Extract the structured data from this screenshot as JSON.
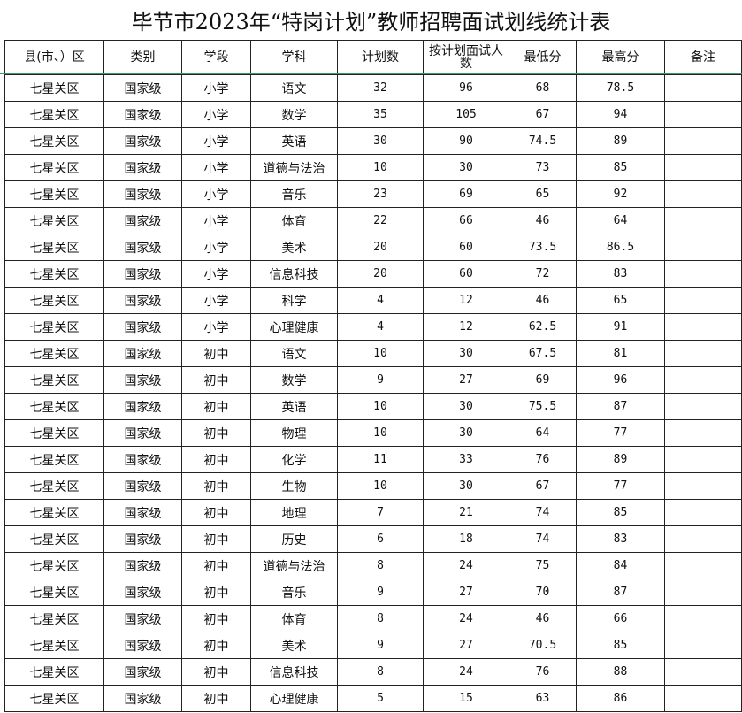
{
  "title": "毕节市2023年“特岗计划”教师招聘面试划线统计表",
  "headers": [
    "县(市、）区",
    "类别",
    "学段",
    "学科",
    "计划数",
    "按计划面试人数",
    "最低分",
    "最高分",
    "备注"
  ],
  "rows": [
    [
      "七星关区",
      "国家级",
      "小学",
      "语文",
      "32",
      "96",
      "68",
      "78.5",
      ""
    ],
    [
      "七星关区",
      "国家级",
      "小学",
      "数学",
      "35",
      "105",
      "67",
      "94",
      ""
    ],
    [
      "七星关区",
      "国家级",
      "小学",
      "英语",
      "30",
      "90",
      "74.5",
      "89",
      ""
    ],
    [
      "七星关区",
      "国家级",
      "小学",
      "道德与法治",
      "10",
      "30",
      "73",
      "85",
      ""
    ],
    [
      "七星关区",
      "国家级",
      "小学",
      "音乐",
      "23",
      "69",
      "65",
      "92",
      ""
    ],
    [
      "七星关区",
      "国家级",
      "小学",
      "体育",
      "22",
      "66",
      "46",
      "64",
      ""
    ],
    [
      "七星关区",
      "国家级",
      "小学",
      "美术",
      "20",
      "60",
      "73.5",
      "86.5",
      ""
    ],
    [
      "七星关区",
      "国家级",
      "小学",
      "信息科技",
      "20",
      "60",
      "72",
      "83",
      ""
    ],
    [
      "七星关区",
      "国家级",
      "小学",
      "科学",
      "4",
      "12",
      "46",
      "65",
      ""
    ],
    [
      "七星关区",
      "国家级",
      "小学",
      "心理健康",
      "4",
      "12",
      "62.5",
      "91",
      ""
    ],
    [
      "七星关区",
      "国家级",
      "初中",
      "语文",
      "10",
      "30",
      "67.5",
      "81",
      ""
    ],
    [
      "七星关区",
      "国家级",
      "初中",
      "数学",
      "9",
      "27",
      "69",
      "96",
      ""
    ],
    [
      "七星关区",
      "国家级",
      "初中",
      "英语",
      "10",
      "30",
      "75.5",
      "87",
      ""
    ],
    [
      "七星关区",
      "国家级",
      "初中",
      "物理",
      "10",
      "30",
      "64",
      "77",
      ""
    ],
    [
      "七星关区",
      "国家级",
      "初中",
      "化学",
      "11",
      "33",
      "76",
      "89",
      ""
    ],
    [
      "七星关区",
      "国家级",
      "初中",
      "生物",
      "10",
      "30",
      "67",
      "77",
      ""
    ],
    [
      "七星关区",
      "国家级",
      "初中",
      "地理",
      "7",
      "21",
      "74",
      "85",
      ""
    ],
    [
      "七星关区",
      "国家级",
      "初中",
      "历史",
      "6",
      "18",
      "74",
      "83",
      ""
    ],
    [
      "七星关区",
      "国家级",
      "初中",
      "道德与法治",
      "8",
      "24",
      "75",
      "84",
      ""
    ],
    [
      "七星关区",
      "国家级",
      "初中",
      "音乐",
      "9",
      "27",
      "70",
      "87",
      ""
    ],
    [
      "七星关区",
      "国家级",
      "初中",
      "体育",
      "8",
      "24",
      "46",
      "66",
      ""
    ],
    [
      "七星关区",
      "国家级",
      "初中",
      "美术",
      "9",
      "27",
      "70.5",
      "85",
      ""
    ],
    [
      "七星关区",
      "国家级",
      "初中",
      "信息科技",
      "8",
      "24",
      "76",
      "88",
      ""
    ],
    [
      "七星关区",
      "国家级",
      "初中",
      "心理健康",
      "5",
      "15",
      "63",
      "86",
      ""
    ]
  ]
}
